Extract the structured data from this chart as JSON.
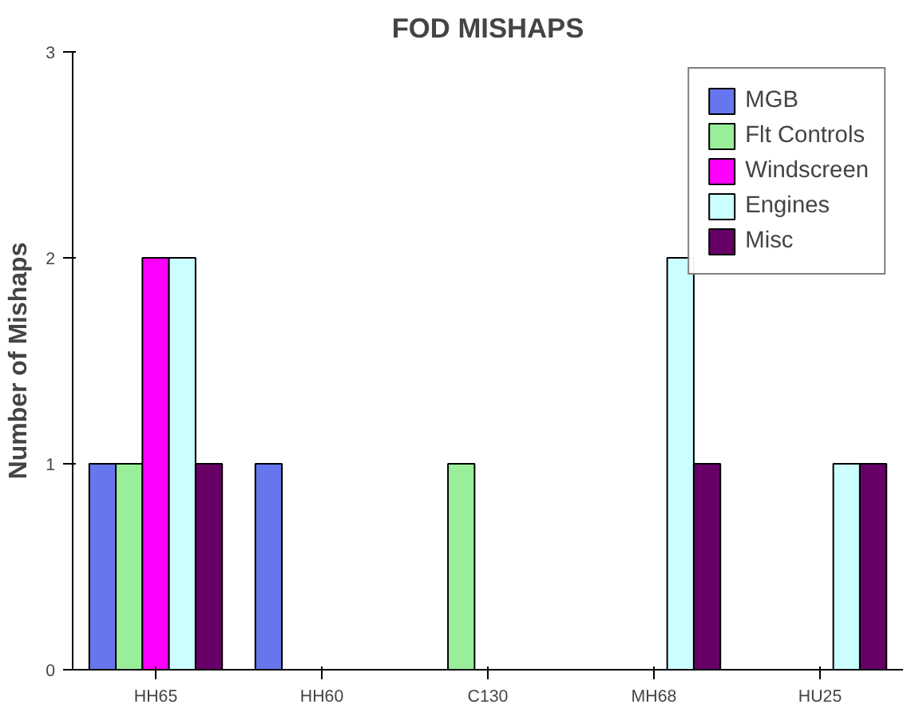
{
  "chart_data": {
    "type": "bar",
    "title": "FOD MISHAPS",
    "ylabel": "Number of Mishaps",
    "categories": [
      "HH65",
      "HH60",
      "C130",
      "MH68",
      "HU25"
    ],
    "series": [
      {
        "name": "MGB",
        "color": "#6677ee",
        "values": [
          1,
          1,
          null,
          null,
          null
        ]
      },
      {
        "name": "Flt Controls",
        "color": "#99ee99",
        "values": [
          1,
          null,
          1,
          null,
          null
        ]
      },
      {
        "name": "Windscreen",
        "color": "#ff00ff",
        "values": [
          2,
          null,
          null,
          null,
          null
        ]
      },
      {
        "name": "Engines",
        "color": "#ccffff",
        "values": [
          2,
          null,
          null,
          2,
          1
        ]
      },
      {
        "name": "Misc",
        "color": "#660066",
        "values": [
          1,
          null,
          null,
          1,
          1
        ]
      }
    ],
    "ylim": [
      0,
      3
    ],
    "yticks": [
      0,
      1,
      2,
      3
    ],
    "grid": false,
    "legend": "top right"
  }
}
